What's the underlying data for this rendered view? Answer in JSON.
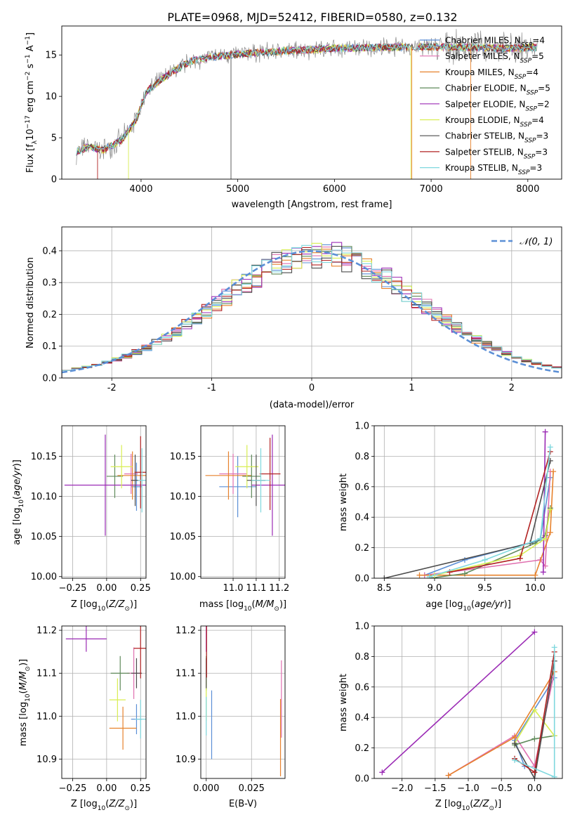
{
  "figure_title": "PLATE=0968, MJD=52412, FIBERID=0580, z=0.132",
  "colors": {
    "Chabrier MILES": "#5b8fd6",
    "Salpeter MILES": "#e070b0",
    "Kroupa MILES": "#e7822c",
    "Chabrier ELODIE": "#5f8a5a",
    "Salpeter ELODIE": "#9b2bb5",
    "Kroupa ELODIE": "#d8ee52",
    "Chabrier STELIB": "#4c4c4c",
    "Salpeter STELIB": "#b22222",
    "Kroupa STELIB": "#7fd8de",
    "normal": "#5b8fd6",
    "data": "#8c8c8c"
  },
  "chart_data": [
    {
      "id": "spectrum",
      "type": "line",
      "xlabel": "wavelength [Angstrom, rest frame]",
      "ylabel": "Flux [f_λ10^-17 erg cm^-2 s^-1 A^-1]",
      "xlim": [
        3180,
        8350
      ],
      "ylim": [
        0,
        18.5
      ],
      "xticks": [
        4000,
        5000,
        6000,
        7000,
        8000
      ],
      "yticks": [
        0,
        5,
        10,
        15
      ],
      "grid": false,
      "legend_position": "top-right",
      "legend": [
        {
          "label": "Chabrier MILES, N",
          "sub": "SSP",
          "suffix": "=4"
        },
        {
          "label": "Salpeter MILES, N",
          "sub": "SSP",
          "suffix": "=5"
        },
        {
          "label": "Kroupa MILES, N",
          "sub": "SSP",
          "suffix": "=4"
        },
        {
          "label": "Chabrier ELODIE, N",
          "sub": "SSP",
          "suffix": "=5"
        },
        {
          "label": "Salpeter ELODIE, N",
          "sub": "SSP",
          "suffix": "=2"
        },
        {
          "label": "Kroupa ELODIE, N",
          "sub": "SSP",
          "suffix": "=4"
        },
        {
          "label": "Chabrier STELIB, N",
          "sub": "SSP",
          "suffix": "=3"
        },
        {
          "label": "Salpeter STELIB, N",
          "sub": "SSP",
          "suffix": "=3"
        },
        {
          "label": "Kroupa STELIB, N",
          "sub": "SSP",
          "suffix": "=3"
        }
      ],
      "continuum": {
        "x": [
          3330,
          3450,
          3600,
          3800,
          3950,
          4050,
          4250,
          4500,
          4750,
          5000,
          5250,
          5500,
          6000,
          6500,
          7000,
          7400,
          7800,
          8100
        ],
        "y": [
          3.3,
          3.9,
          3.5,
          4.7,
          7.2,
          10.5,
          12.4,
          14.2,
          14.8,
          15.1,
          15.3,
          15.5,
          15.8,
          15.9,
          16.0,
          15.9,
          15.8,
          15.9
        ]
      }
    },
    {
      "id": "residuals",
      "type": "histogram",
      "xlabel": "(data-model)/error",
      "ylabel": "Normed distribution",
      "xlim": [
        -2.5,
        2.5
      ],
      "ylim": [
        0,
        0.475
      ],
      "xticks": [
        -2,
        -1,
        0,
        1,
        2
      ],
      "yticks": [
        0.0,
        0.1,
        0.2,
        0.3,
        0.4
      ],
      "grid": true,
      "legend_position": "top-right",
      "legend": [
        "𝒩(0, 1)"
      ],
      "bin_width": 0.1,
      "bin_start": -2.5
    },
    {
      "id": "age_vs_Z",
      "type": "errorbar",
      "xlabel": "Z [log10(Z/Z⊙)]",
      "ylabel": "age [log10(age/yr)]",
      "xlim": [
        -0.33,
        0.29
      ],
      "ylim": [
        9.998,
        10.188
      ],
      "xticks": [
        -0.25,
        0.0,
        0.25
      ],
      "yticks": [
        10.0,
        10.05,
        10.1,
        10.15
      ],
      "grid": true,
      "points": [
        {
          "model": "Chabrier MILES",
          "x": 0.22,
          "y": 10.112,
          "xerr": 0.04,
          "yerr": 0.03
        },
        {
          "model": "Salpeter MILES",
          "x": 0.18,
          "y": 10.128,
          "xerr": 0.05,
          "yerr": 0.025
        },
        {
          "model": "Kroupa MILES",
          "x": 0.19,
          "y": 10.126,
          "xerr": 0.11,
          "yerr": 0.03
        },
        {
          "model": "Chabrier ELODIE",
          "x": 0.06,
          "y": 10.125,
          "xerr": 0.06,
          "yerr": 0.027
        },
        {
          "model": "Salpeter ELODIE",
          "x": -0.01,
          "y": 10.114,
          "xerr": 0.3,
          "yerr": 0.063
        },
        {
          "model": "Kroupa ELODIE",
          "x": 0.11,
          "y": 10.137,
          "xerr": 0.08,
          "yerr": 0.027
        },
        {
          "model": "Chabrier STELIB",
          "x": 0.21,
          "y": 10.12,
          "xerr": 0.03,
          "yerr": 0.032
        },
        {
          "model": "Salpeter STELIB",
          "x": 0.25,
          "y": 10.13,
          "xerr": 0.045,
          "yerr": 0.045
        },
        {
          "model": "Kroupa STELIB",
          "x": 0.26,
          "y": 10.12,
          "xerr": 0.03,
          "yerr": 0.04
        }
      ]
    },
    {
      "id": "age_vs_mass",
      "type": "errorbar",
      "xlabel": "mass [log10(M/M⊙)]",
      "ylabel": "",
      "xlim": [
        10.86,
        11.225
      ],
      "ylim": [
        9.998,
        10.188
      ],
      "xticks": [
        11.0,
        11.1,
        11.2
      ],
      "yticks": [
        10.0,
        10.05,
        10.1,
        10.15
      ],
      "grid": true,
      "points": [
        {
          "model": "Chabrier MILES",
          "x": 11.02,
          "y": 10.112,
          "xerr": 0.08,
          "yerr": 0.038
        },
        {
          "model": "Salpeter MILES",
          "x": 11.0,
          "y": 10.128,
          "xerr": 0.06,
          "yerr": 0.025
        },
        {
          "model": "Kroupa MILES",
          "x": 10.98,
          "y": 10.126,
          "xerr": 0.1,
          "yerr": 0.03
        },
        {
          "model": "Chabrier ELODIE",
          "x": 11.08,
          "y": 10.125,
          "xerr": 0.04,
          "yerr": 0.027
        },
        {
          "model": "Salpeter ELODIE",
          "x": 11.17,
          "y": 10.114,
          "xerr": 0.09,
          "yerr": 0.063
        },
        {
          "model": "Kroupa ELODIE",
          "x": 11.06,
          "y": 10.137,
          "xerr": 0.05,
          "yerr": 0.027
        },
        {
          "model": "Chabrier STELIB",
          "x": 11.1,
          "y": 10.12,
          "xerr": 0.04,
          "yerr": 0.032
        },
        {
          "model": "Salpeter STELIB",
          "x": 11.16,
          "y": 10.128,
          "xerr": 0.045,
          "yerr": 0.045
        },
        {
          "model": "Kroupa STELIB",
          "x": 11.12,
          "y": 10.12,
          "xerr": 0.04,
          "yerr": 0.04
        }
      ]
    },
    {
      "id": "weight_vs_age",
      "type": "line",
      "xlabel": "age [log10(age/yr)]",
      "ylabel": "mass weight",
      "xlim": [
        8.4,
        10.27
      ],
      "ylim": [
        0,
        1.0
      ],
      "xticks": [
        8.5,
        9.0,
        9.5,
        10.0
      ],
      "yticks": [
        0.0,
        0.2,
        0.4,
        0.6,
        0.8,
        1.0
      ],
      "grid": true,
      "series": [
        {
          "model": "Chabrier MILES",
          "x": [
            8.9,
            9.3,
            10.05,
            10.15
          ],
          "y": [
            0.02,
            0.12,
            0.25,
            0.66
          ]
        },
        {
          "model": "Salpeter MILES",
          "x": [
            8.9,
            9.15,
            10.05,
            10.1,
            10.15
          ],
          "y": [
            0.02,
            0.04,
            0.12,
            0.08,
            0.7
          ]
        },
        {
          "model": "Kroupa MILES",
          "x": [
            8.85,
            10.0,
            10.15,
            10.18
          ],
          "y": [
            0.02,
            0.02,
            0.3,
            0.7
          ]
        },
        {
          "model": "Chabrier ELODIE",
          "x": [
            8.95,
            9.3,
            10.0,
            10.1,
            10.15
          ],
          "y": [
            0.0,
            0.03,
            0.23,
            0.28,
            0.46
          ]
        },
        {
          "model": "Salpeter ELODIE",
          "x": [
            10.08,
            10.1
          ],
          "y": [
            0.04,
            0.96
          ]
        },
        {
          "model": "Kroupa ELODIE",
          "x": [
            9.0,
            9.85,
            10.1,
            10.15
          ],
          "y": [
            0.02,
            0.15,
            0.26,
            0.45
          ]
        },
        {
          "model": "Chabrier STELIB",
          "x": [
            8.5,
            9.95,
            10.15
          ],
          "y": [
            0.0,
            0.23,
            0.77
          ]
        },
        {
          "model": "Salpeter STELIB",
          "x": [
            9.15,
            9.85,
            10.15
          ],
          "y": [
            0.04,
            0.13,
            0.83
          ]
        },
        {
          "model": "Kroupa STELIB",
          "x": [
            8.95,
            9.5,
            10.05,
            10.15
          ],
          "y": [
            0.01,
            0.12,
            0.26,
            0.86
          ]
        }
      ]
    },
    {
      "id": "mass_vs_Z",
      "type": "errorbar",
      "xlabel": "Z [log10(Z/Z⊙)]",
      "ylabel": "mass [log10(M/M⊙)]",
      "xlim": [
        -0.33,
        0.29
      ],
      "ylim": [
        10.855,
        11.21
      ],
      "xticks": [
        -0.25,
        0.0,
        0.25
      ],
      "yticks": [
        10.9,
        11.0,
        11.1,
        11.2
      ],
      "grid": true,
      "points": [
        {
          "model": "Chabrier MILES",
          "x": 0.22,
          "y": 10.993,
          "xerr": 0.04,
          "yerr": 0.035
        },
        {
          "model": "Salpeter MILES",
          "x": 0.2,
          "y": 11.1,
          "xerr": 0.05,
          "yerr": 0.06
        },
        {
          "model": "Kroupa MILES",
          "x": 0.12,
          "y": 10.972,
          "xerr": 0.1,
          "yerr": 0.05
        },
        {
          "model": "Chabrier ELODIE",
          "x": 0.1,
          "y": 11.1,
          "xerr": 0.07,
          "yerr": 0.04
        },
        {
          "model": "Salpeter ELODIE",
          "x": -0.15,
          "y": 11.18,
          "xerr": 0.15,
          "yerr": 0.03
        },
        {
          "model": "Kroupa ELODIE",
          "x": 0.08,
          "y": 11.038,
          "xerr": 0.06,
          "yerr": 0.05
        },
        {
          "model": "Chabrier STELIB",
          "x": 0.22,
          "y": 11.1,
          "xerr": 0.04,
          "yerr": 0.035
        },
        {
          "model": "Salpeter STELIB",
          "x": 0.25,
          "y": 11.158,
          "xerr": 0.05,
          "yerr": 0.07
        },
        {
          "model": "Kroupa STELIB",
          "x": 0.25,
          "y": 10.993,
          "xerr": 0.04,
          "yerr": 0.045
        }
      ]
    },
    {
      "id": "mass_vs_ebv",
      "type": "errorbar",
      "xlabel": "E(B-V)",
      "ylabel": "",
      "xlim": [
        -0.003,
        0.0435
      ],
      "ylim": [
        10.855,
        11.21
      ],
      "xticks": [
        0.0,
        0.025
      ],
      "yticks": [
        10.9,
        11.0,
        11.1,
        11.2
      ],
      "xtick_labels": [
        "0.000",
        "0.025"
      ],
      "grid": true,
      "points": [
        {
          "model": "Chabrier MILES",
          "x": 0.003,
          "y": 10.98,
          "xerr": 0.0,
          "yerr": 0.08
        },
        {
          "model": "Salpeter MILES",
          "x": 0.0415,
          "y": 11.04,
          "xerr": 0.0,
          "yerr": 0.09
        },
        {
          "model": "Kroupa MILES",
          "x": 0.041,
          "y": 10.95,
          "xerr": 0.0,
          "yerr": 0.09
        },
        {
          "model": "Chabrier ELODIE",
          "x": 0.0,
          "y": 11.1,
          "xerr": 0.0,
          "yerr": 0.04
        },
        {
          "model": "Salpeter ELODIE",
          "x": 0.0,
          "y": 11.18,
          "xerr": 0.0,
          "yerr": 0.03
        },
        {
          "model": "Kroupa ELODIE",
          "x": 0.0,
          "y": 11.04,
          "xerr": 0.0,
          "yerr": 0.05
        },
        {
          "model": "Chabrier STELIB",
          "x": 0.0,
          "y": 11.1,
          "xerr": 0.0,
          "yerr": 0.035
        },
        {
          "model": "Salpeter STELIB",
          "x": 0.0002,
          "y": 11.16,
          "xerr": 0.0,
          "yerr": 0.07
        },
        {
          "model": "Kroupa STELIB",
          "x": 0.0,
          "y": 11.0,
          "xerr": 0.0,
          "yerr": 0.045
        }
      ]
    },
    {
      "id": "weight_vs_Z",
      "type": "line",
      "xlabel": "Z [log10(Z/Z⊙)]",
      "ylabel": "mass weight",
      "xlim": [
        -2.42,
        0.42
      ],
      "ylim": [
        0,
        1.0
      ],
      "xticks": [
        -2.0,
        -1.5,
        -1.0,
        -0.5,
        0.0
      ],
      "yticks": [
        0.0,
        0.2,
        0.4,
        0.6,
        0.8,
        1.0
      ],
      "grid": true,
      "series": [
        {
          "model": "Chabrier MILES",
          "x": [
            -0.15,
            -0.3,
            0.3
          ],
          "y": [
            0.08,
            0.25,
            0.66
          ]
        },
        {
          "model": "Salpeter MILES",
          "x": [
            -1.3,
            -0.3,
            0.0,
            0.3
          ],
          "y": [
            0.02,
            0.28,
            0.08,
            0.7
          ]
        },
        {
          "model": "Kroupa MILES",
          "x": [
            -1.3,
            -0.3,
            0.3
          ],
          "y": [
            0.02,
            0.27,
            0.7
          ]
        },
        {
          "model": "Chabrier ELODIE",
          "x": [
            -0.3,
            0.0,
            0.3
          ],
          "y": [
            0.22,
            0.26,
            0.28
          ]
        },
        {
          "model": "Salpeter ELODIE",
          "x": [
            -2.3,
            0.0
          ],
          "y": [
            0.04,
            0.96
          ]
        },
        {
          "model": "Kroupa ELODIE",
          "x": [
            -0.3,
            0.0,
            0.3
          ],
          "y": [
            0.23,
            0.45,
            0.28
          ]
        },
        {
          "model": "Chabrier STELIB",
          "x": [
            -0.3,
            0.0,
            0.3
          ],
          "y": [
            0.23,
            0.0,
            0.77
          ]
        },
        {
          "model": "Salpeter STELIB",
          "x": [
            -0.3,
            0.0,
            0.3
          ],
          "y": [
            0.13,
            0.04,
            0.83
          ]
        },
        {
          "model": "Kroupa STELIB",
          "x": [
            -0.3,
            0.3,
            0.3
          ],
          "y": [
            0.12,
            0.01,
            0.86
          ]
        }
      ]
    }
  ]
}
